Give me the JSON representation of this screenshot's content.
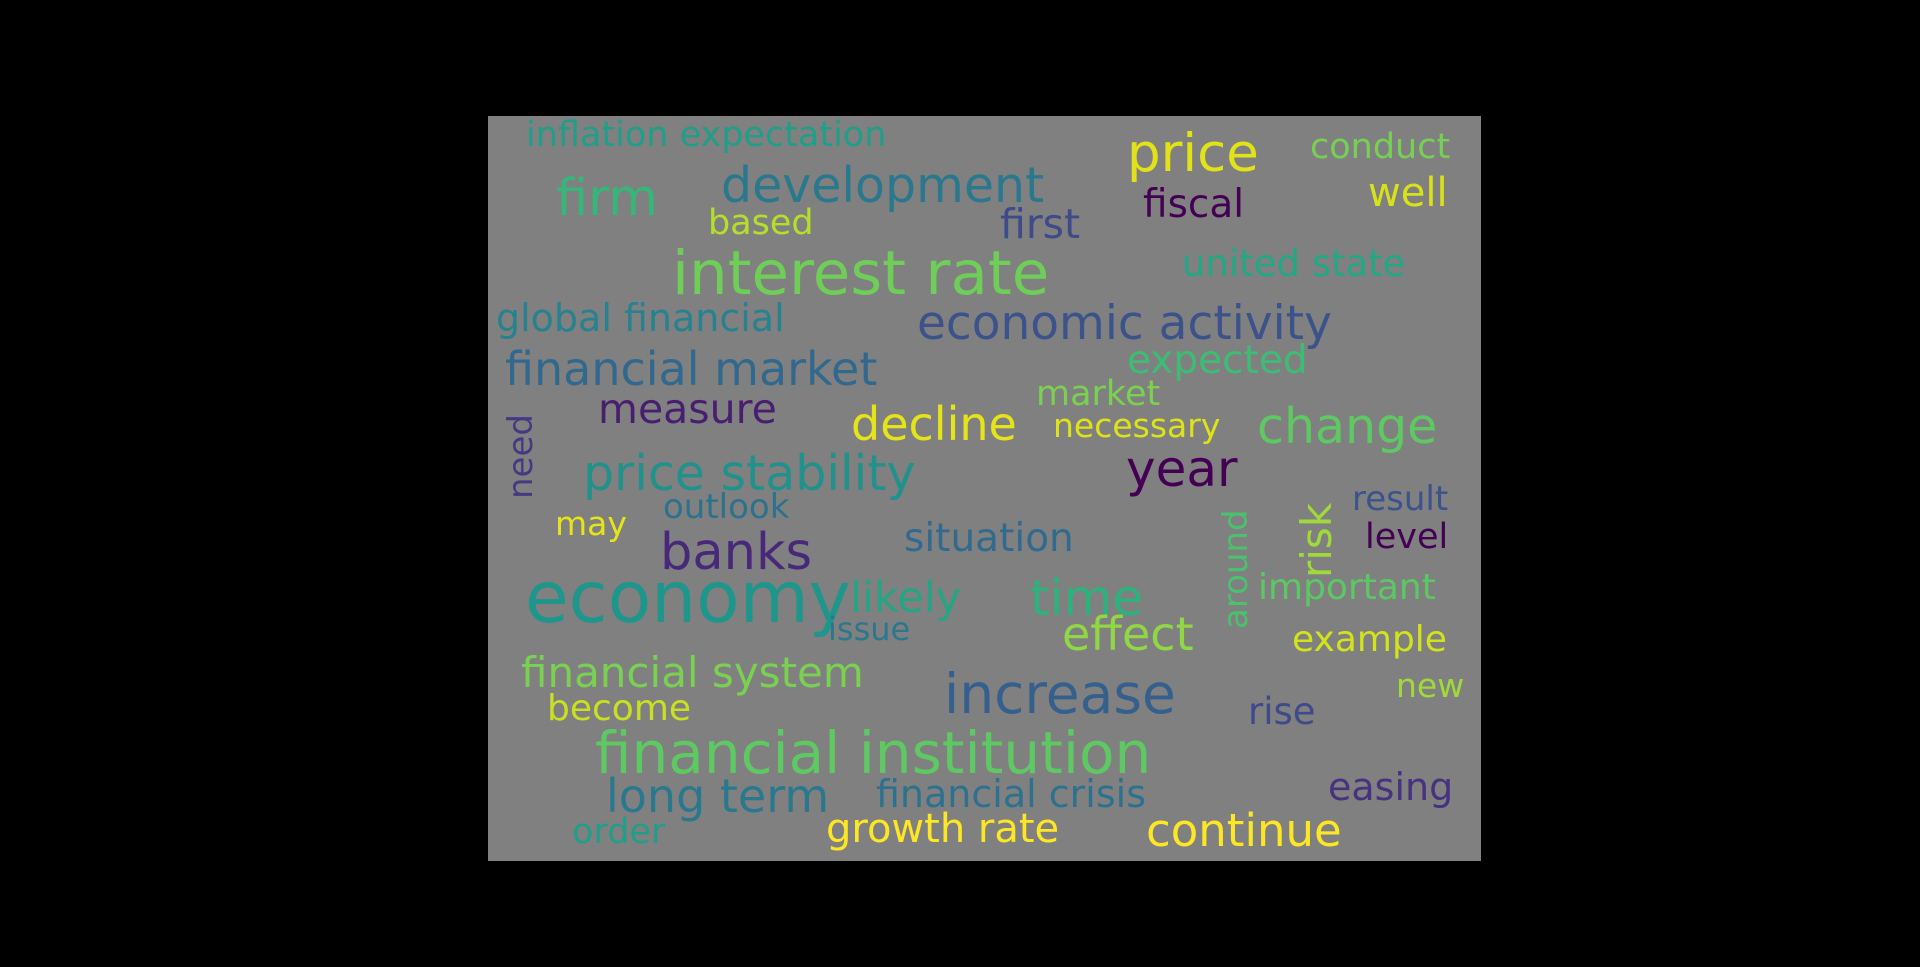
{
  "word_cloud": {
    "background_color": "#808080",
    "page_background_color": "#000000",
    "words": [
      {
        "text": "inflation expectation",
        "color": "#1f9e89"
      },
      {
        "text": "price",
        "color": "#e1e318"
      },
      {
        "text": "conduct",
        "color": "#75d054"
      },
      {
        "text": "firm",
        "color": "#35b779"
      },
      {
        "text": "development",
        "color": "#2a788e"
      },
      {
        "text": "well",
        "color": "#d8e219"
      },
      {
        "text": "fiscal",
        "color": "#440154"
      },
      {
        "text": "based",
        "color": "#b5de2b"
      },
      {
        "text": "first",
        "color": "#3e4a89"
      },
      {
        "text": "interest rate",
        "color": "#6ece58"
      },
      {
        "text": "united state",
        "color": "#22a884"
      },
      {
        "text": "global financial",
        "color": "#26828e"
      },
      {
        "text": "economic activity",
        "color": "#3b528b"
      },
      {
        "text": "financial market",
        "color": "#31688e"
      },
      {
        "text": "expected",
        "color": "#3dbc74"
      },
      {
        "text": "market",
        "color": "#7ad151"
      },
      {
        "text": "measure",
        "color": "#481f70"
      },
      {
        "text": "decline",
        "color": "#e5e419"
      },
      {
        "text": "necessary",
        "color": "#dde318"
      },
      {
        "text": "change",
        "color": "#5ec962"
      },
      {
        "text": "need",
        "color": "#443983"
      },
      {
        "text": "price stability",
        "color": "#21918c"
      },
      {
        "text": "year",
        "color": "#440154"
      },
      {
        "text": "outlook",
        "color": "#2c728e"
      },
      {
        "text": "result",
        "color": "#3b528b"
      },
      {
        "text": "risk",
        "color": "#9fda3a"
      },
      {
        "text": "around",
        "color": "#4ac16d"
      },
      {
        "text": "may",
        "color": "#e5e419"
      },
      {
        "text": "banks",
        "color": "#482878"
      },
      {
        "text": "situation",
        "color": "#306a8e"
      },
      {
        "text": "level",
        "color": "#440154"
      },
      {
        "text": "economy",
        "color": "#1f968b"
      },
      {
        "text": "likely",
        "color": "#25a584"
      },
      {
        "text": "time",
        "color": "#2db27d"
      },
      {
        "text": "important",
        "color": "#5cc863"
      },
      {
        "text": "issue",
        "color": "#2a788e"
      },
      {
        "text": "effect",
        "color": "#8fd744"
      },
      {
        "text": "example",
        "color": "#d2e21b"
      },
      {
        "text": "financial system",
        "color": "#7ad151"
      },
      {
        "text": "increase",
        "color": "#355f8d"
      },
      {
        "text": "new",
        "color": "#9fda3a"
      },
      {
        "text": "become",
        "color": "#c8e020"
      },
      {
        "text": "rise",
        "color": "#3e4a89"
      },
      {
        "text": "financial institution",
        "color": "#5ec962"
      },
      {
        "text": "long term",
        "color": "#2a788e"
      },
      {
        "text": "financial crisis",
        "color": "#2c728e"
      },
      {
        "text": "easing",
        "color": "#46327e"
      },
      {
        "text": "order",
        "color": "#1f9e89"
      },
      {
        "text": "growth rate",
        "color": "#fde725"
      },
      {
        "text": "continue",
        "color": "#fde725"
      }
    ]
  }
}
